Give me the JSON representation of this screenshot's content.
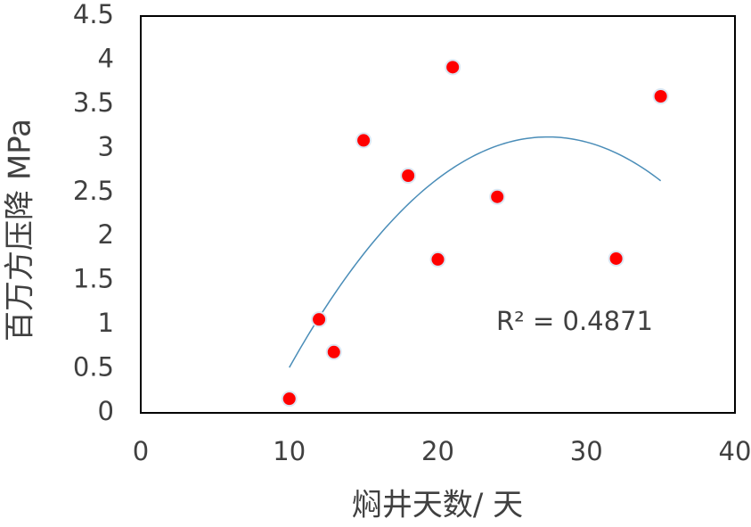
{
  "chart_data": {
    "type": "scatter",
    "x_label": "焖井天数/ 天",
    "y_label": "百万方压降 MPa",
    "x": [
      10,
      12,
      13,
      15,
      18,
      20,
      21,
      24,
      32,
      35
    ],
    "series": [
      {
        "values": [
          0.16,
          1.06,
          0.69,
          3.09,
          2.69,
          1.74,
          3.92,
          2.45,
          1.75,
          3.59
        ],
        "color": "#ff0000"
      }
    ],
    "xlim": [
      0,
      40
    ],
    "xticks": [
      0,
      10,
      20,
      30,
      40
    ],
    "ylim": [
      0,
      4.5
    ],
    "yticks": [
      0,
      0.5,
      1,
      1.5,
      2,
      2.5,
      3,
      3.5,
      4,
      4.5
    ],
    "grid": false,
    "trendline": {
      "order": 2,
      "color": "#4a8db8",
      "label": "R² = 0.4871"
    }
  }
}
